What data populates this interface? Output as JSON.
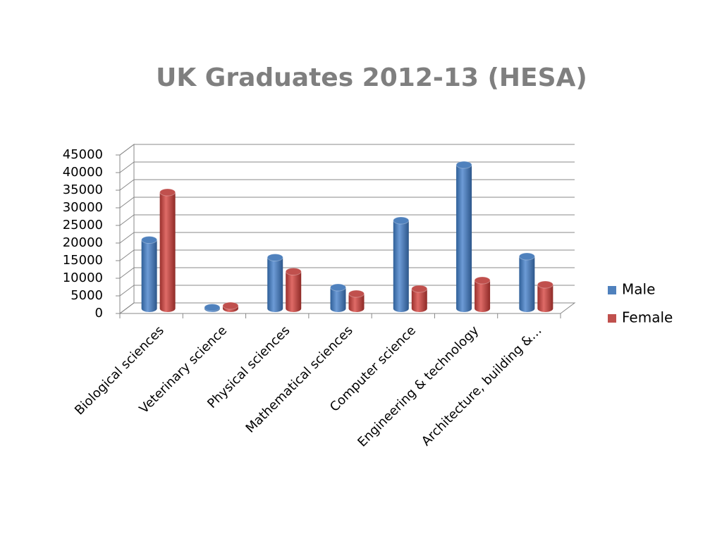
{
  "chart_data": {
    "type": "bar3d",
    "title": "UK Graduates 2012-13 (HESA)",
    "categories": [
      "Biological sciences",
      "Veterinary science",
      "Physical sciences",
      "Mathematical sciences",
      "Computer science",
      "Engineering & technology",
      "Architecture, building &…"
    ],
    "series": [
      {
        "name": "Male",
        "color": "#4f81bd",
        "values": [
          19500,
          300,
          14500,
          6000,
          25000,
          40800,
          14800
        ]
      },
      {
        "name": "Female",
        "color": "#c0504d",
        "values": [
          33000,
          800,
          10500,
          4200,
          5600,
          8000,
          6800
        ]
      }
    ],
    "ylim": [
      0,
      45000
    ],
    "yticks": [
      0,
      5000,
      10000,
      15000,
      20000,
      25000,
      30000,
      35000,
      40000,
      45000
    ],
    "grid": true,
    "legend": "right"
  }
}
